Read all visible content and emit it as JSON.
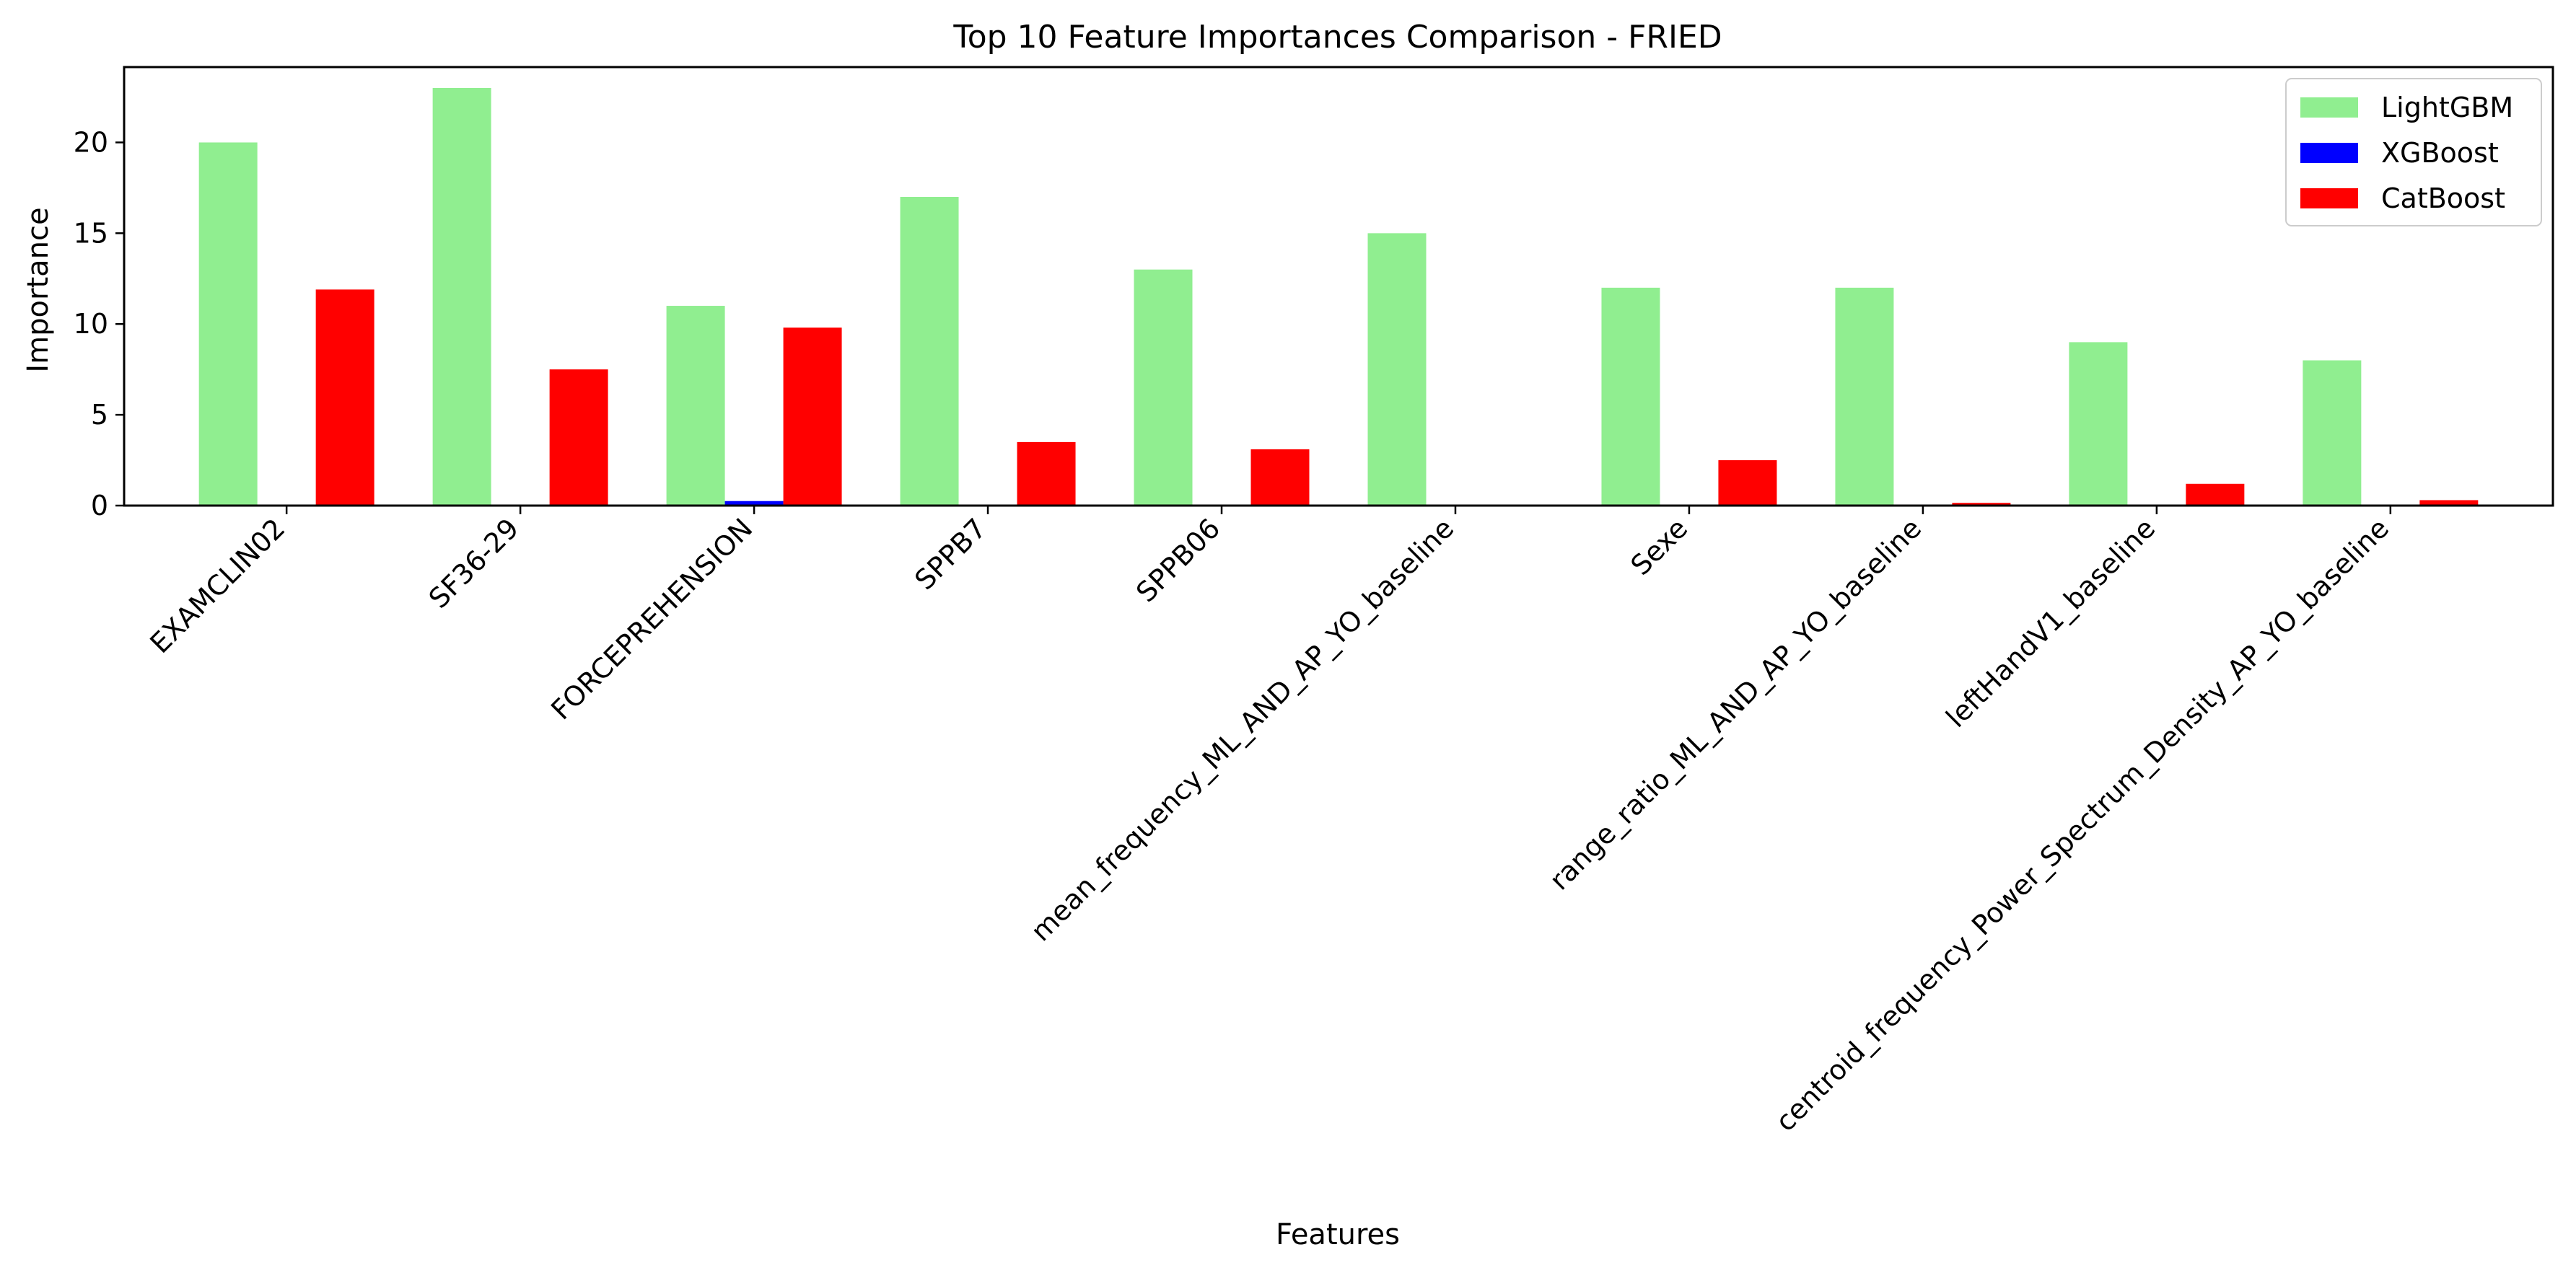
{
  "chart_data": {
    "type": "bar",
    "title": "Top 10 Feature Importances Comparison - FRIED",
    "xlabel": "Features",
    "ylabel": "Importance",
    "ylim": [
      0,
      24.15
    ],
    "yticks": [
      0,
      5,
      10,
      15,
      20
    ],
    "grid": false,
    "legend_position": "top-right",
    "categories": [
      "EXAMCLIN02",
      "SF36-29",
      "FORCEPREHENSION",
      "SPPB7",
      "SPPB06",
      "mean_frequency_ML_AND_AP_YO_baseline",
      "Sexe",
      "range_ratio_ML_AND_AP_YO_baseline",
      "leftHandV1_baseline",
      "centroid_frequency_Power_Spectrum_Density_AP_YO_baseline"
    ],
    "series": [
      {
        "name": "LightGBM",
        "color": "#90ee90",
        "values": [
          20,
          23,
          11,
          17,
          13,
          15,
          12,
          12,
          9,
          8
        ]
      },
      {
        "name": "XGBoost",
        "color": "#0000ff",
        "values": [
          0,
          0,
          0.25,
          0,
          0,
          0,
          0,
          0,
          0,
          0
        ]
      },
      {
        "name": "CatBoost",
        "color": "#ff0000",
        "values": [
          11.9,
          7.5,
          9.8,
          3.5,
          3.1,
          0,
          2.5,
          0.15,
          1.2,
          0.3
        ]
      }
    ]
  }
}
